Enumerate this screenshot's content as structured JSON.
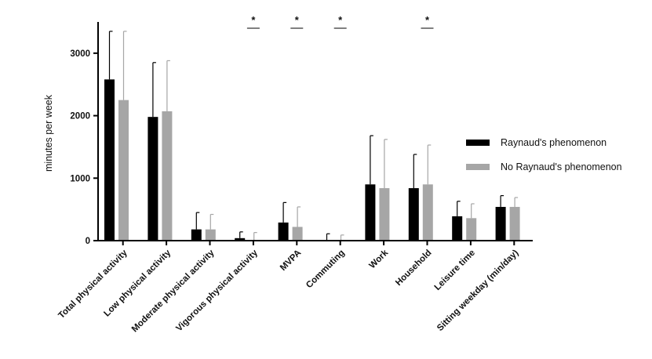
{
  "chart_data": {
    "type": "bar",
    "title": "",
    "xlabel": "",
    "ylabel": "minutes per week",
    "ylim": [
      0,
      3500
    ],
    "yticks": [
      0,
      1000,
      2000,
      3000
    ],
    "categories": [
      "Total physical activity",
      "Low physical activity",
      "Moderate physical activity",
      "Vigorous physical activity",
      "MVPA",
      "Commuting",
      "Work",
      "Household",
      "Leisure time",
      "Sitting weekday (min/day)"
    ],
    "series": [
      {
        "name": "Raynaud's phenomenon",
        "color": "#000000",
        "values": [
          2580,
          1980,
          180,
          40,
          290,
          5,
          900,
          840,
          390,
          540
        ],
        "error_upper": [
          3350,
          2850,
          450,
          140,
          610,
          110,
          1680,
          1380,
          630,
          720
        ]
      },
      {
        "name": "No Raynaud's phenomenon",
        "color": "#a6a6a6",
        "values": [
          2250,
          2070,
          180,
          10,
          220,
          5,
          840,
          900,
          360,
          540
        ],
        "error_upper": [
          3350,
          2880,
          420,
          130,
          540,
          90,
          1620,
          1530,
          590,
          690
        ]
      }
    ],
    "significance": [
      {
        "category": "Vigorous physical activity",
        "label": "*"
      },
      {
        "category": "MVPA",
        "label": "*"
      },
      {
        "category": "Commuting",
        "label": "*"
      },
      {
        "category": "Household",
        "label": "*"
      }
    ],
    "legend_position": "right",
    "grid": false
  }
}
